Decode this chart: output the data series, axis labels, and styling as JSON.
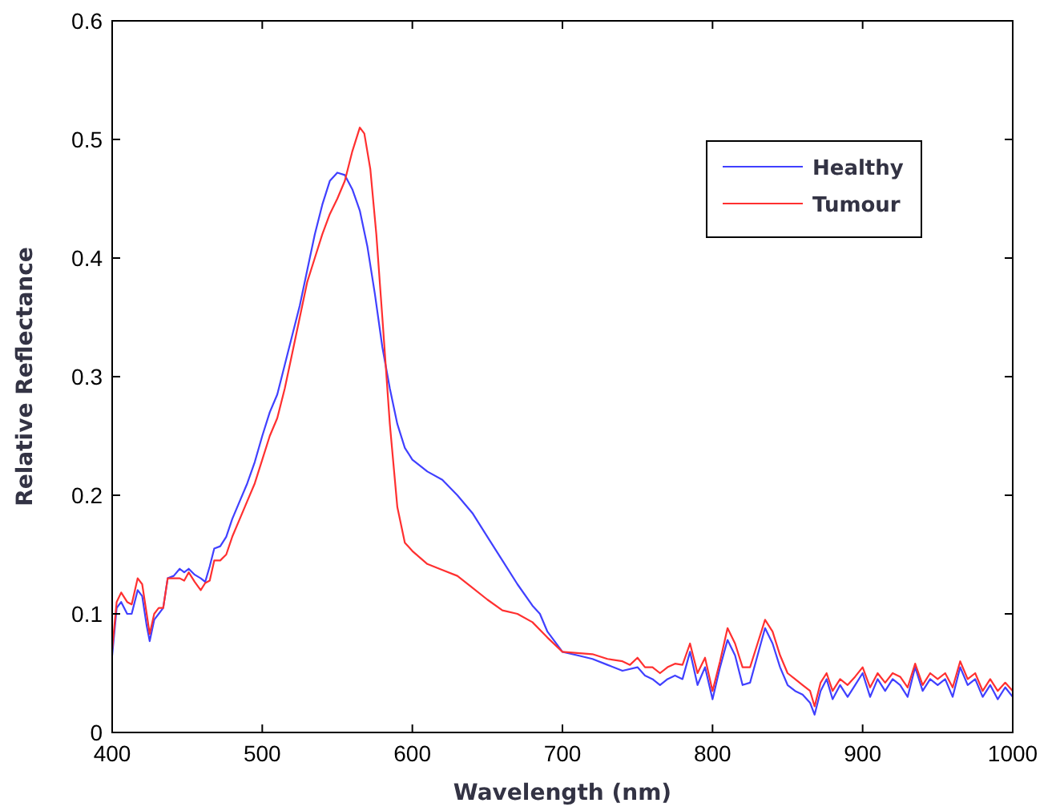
{
  "chart_data": {
    "type": "line",
    "xlabel": "Wavelength (nm)",
    "ylabel": "Relative Reflectance",
    "xlim": [
      400,
      1000
    ],
    "xticks": [
      400,
      500,
      600,
      700,
      800,
      900,
      1000
    ],
    "ylim": [
      0,
      0.6
    ],
    "yticks": [
      0,
      0.1,
      0.2,
      0.3,
      0.4,
      0.5,
      0.6
    ],
    "grid": false,
    "legend": "top right",
    "marker": "none",
    "line_style": "solid",
    "series": [
      {
        "name": "Healthy",
        "color": "#4040ff",
        "x": [
          400,
          403,
          406,
          410,
          413,
          417,
          420,
          423,
          425,
          428,
          431,
          434,
          437,
          441,
          445,
          448,
          451,
          455,
          459,
          462,
          465,
          468,
          472,
          476,
          480,
          485,
          490,
          495,
          500,
          505,
          510,
          515,
          520,
          525,
          530,
          535,
          540,
          545,
          550,
          555,
          560,
          565,
          570,
          575,
          580,
          585,
          590,
          595,
          600,
          610,
          620,
          630,
          640,
          650,
          660,
          670,
          680,
          685,
          690,
          700,
          710,
          720,
          730,
          740,
          750,
          755,
          760,
          765,
          770,
          775,
          780,
          785,
          790,
          795,
          800,
          805,
          810,
          815,
          820,
          825,
          830,
          835,
          840,
          845,
          850,
          855,
          860,
          865,
          868,
          872,
          876,
          880,
          885,
          890,
          895,
          900,
          905,
          910,
          915,
          920,
          925,
          930,
          935,
          940,
          945,
          950,
          955,
          960,
          965,
          970,
          975,
          980,
          985,
          990,
          995,
          1000
        ],
        "values": [
          0.065,
          0.105,
          0.11,
          0.1,
          0.1,
          0.12,
          0.115,
          0.09,
          0.077,
          0.095,
          0.1,
          0.105,
          0.13,
          0.132,
          0.138,
          0.135,
          0.138,
          0.133,
          0.13,
          0.127,
          0.14,
          0.155,
          0.157,
          0.165,
          0.18,
          0.195,
          0.21,
          0.228,
          0.25,
          0.27,
          0.285,
          0.31,
          0.335,
          0.36,
          0.39,
          0.42,
          0.445,
          0.465,
          0.472,
          0.47,
          0.458,
          0.44,
          0.41,
          0.37,
          0.325,
          0.29,
          0.26,
          0.24,
          0.23,
          0.22,
          0.213,
          0.2,
          0.185,
          0.165,
          0.145,
          0.125,
          0.107,
          0.1,
          0.085,
          0.068,
          0.065,
          0.062,
          0.057,
          0.052,
          0.055,
          0.048,
          0.045,
          0.04,
          0.045,
          0.048,
          0.045,
          0.068,
          0.04,
          0.055,
          0.028,
          0.055,
          0.078,
          0.065,
          0.04,
          0.042,
          0.065,
          0.088,
          0.075,
          0.055,
          0.04,
          0.035,
          0.032,
          0.025,
          0.015,
          0.035,
          0.045,
          0.028,
          0.04,
          0.03,
          0.04,
          0.05,
          0.03,
          0.045,
          0.035,
          0.045,
          0.04,
          0.03,
          0.055,
          0.035,
          0.045,
          0.04,
          0.045,
          0.03,
          0.055,
          0.04,
          0.045,
          0.03,
          0.04,
          0.028,
          0.038,
          0.03
        ]
      },
      {
        "name": "Tumour",
        "color": "#ff3030",
        "x": [
          400,
          403,
          406,
          410,
          413,
          417,
          420,
          423,
          425,
          428,
          431,
          434,
          437,
          441,
          445,
          448,
          451,
          455,
          459,
          462,
          465,
          468,
          472,
          476,
          480,
          485,
          490,
          495,
          500,
          505,
          510,
          515,
          520,
          525,
          530,
          535,
          540,
          545,
          550,
          555,
          560,
          565,
          568,
          572,
          576,
          580,
          585,
          590,
          595,
          600,
          610,
          620,
          630,
          640,
          650,
          660,
          670,
          680,
          690,
          700,
          710,
          720,
          730,
          740,
          745,
          750,
          755,
          760,
          765,
          770,
          775,
          780,
          785,
          790,
          795,
          800,
          805,
          810,
          815,
          820,
          825,
          830,
          835,
          840,
          845,
          850,
          855,
          860,
          865,
          868,
          872,
          876,
          880,
          885,
          890,
          895,
          900,
          905,
          910,
          915,
          920,
          925,
          930,
          935,
          940,
          945,
          950,
          955,
          960,
          965,
          970,
          975,
          980,
          985,
          990,
          995,
          1000
        ],
        "values": [
          0.07,
          0.11,
          0.118,
          0.11,
          0.108,
          0.13,
          0.125,
          0.1,
          0.083,
          0.1,
          0.105,
          0.105,
          0.13,
          0.13,
          0.13,
          0.128,
          0.135,
          0.127,
          0.12,
          0.126,
          0.128,
          0.145,
          0.145,
          0.15,
          0.165,
          0.18,
          0.195,
          0.21,
          0.23,
          0.25,
          0.265,
          0.29,
          0.32,
          0.35,
          0.38,
          0.4,
          0.42,
          0.437,
          0.45,
          0.465,
          0.49,
          0.51,
          0.505,
          0.475,
          0.42,
          0.35,
          0.26,
          0.19,
          0.16,
          0.153,
          0.142,
          0.137,
          0.132,
          0.122,
          0.112,
          0.103,
          0.1,
          0.093,
          0.08,
          0.068,
          0.067,
          0.066,
          0.062,
          0.06,
          0.057,
          0.063,
          0.055,
          0.055,
          0.05,
          0.055,
          0.058,
          0.057,
          0.075,
          0.05,
          0.063,
          0.035,
          0.06,
          0.088,
          0.075,
          0.055,
          0.055,
          0.075,
          0.095,
          0.085,
          0.065,
          0.05,
          0.045,
          0.04,
          0.035,
          0.022,
          0.042,
          0.05,
          0.035,
          0.045,
          0.04,
          0.047,
          0.055,
          0.038,
          0.05,
          0.042,
          0.05,
          0.047,
          0.038,
          0.058,
          0.04,
          0.05,
          0.045,
          0.05,
          0.038,
          0.06,
          0.045,
          0.05,
          0.035,
          0.045,
          0.035,
          0.042,
          0.035
        ]
      }
    ]
  }
}
